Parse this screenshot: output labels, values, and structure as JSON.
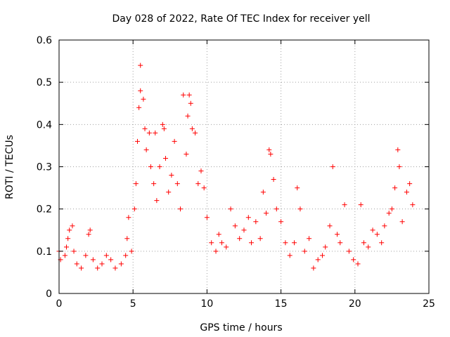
{
  "chart_data": {
    "type": "scatter",
    "title": "Day 028 of 2022, Rate Of TEC Index for receiver yell",
    "xlabel": "GPS time / hours",
    "ylabel": "ROTI / TECUs",
    "xlim": [
      0,
      25
    ],
    "ylim": [
      0,
      0.6
    ],
    "xticks": [
      "0",
      "5",
      "10",
      "15",
      "20",
      "25"
    ],
    "yticks": [
      "0",
      "0.1",
      "0.2",
      "0.3",
      "0.4",
      "0.5",
      "0.6"
    ],
    "grid": true,
    "marker": "+",
    "color": "#ff0000",
    "series": [
      {
        "points": [
          [
            0.0,
            0.1
          ],
          [
            0.1,
            0.08
          ],
          [
            0.4,
            0.09
          ],
          [
            0.5,
            0.11
          ],
          [
            0.6,
            0.13
          ],
          [
            0.7,
            0.15
          ],
          [
            0.9,
            0.16
          ],
          [
            1.0,
            0.1
          ],
          [
            1.2,
            0.07
          ],
          [
            1.5,
            0.06
          ],
          [
            1.8,
            0.09
          ],
          [
            2.0,
            0.14
          ],
          [
            2.1,
            0.15
          ],
          [
            2.3,
            0.08
          ],
          [
            2.6,
            0.06
          ],
          [
            2.9,
            0.07
          ],
          [
            3.2,
            0.09
          ],
          [
            3.5,
            0.08
          ],
          [
            3.8,
            0.06
          ],
          [
            4.2,
            0.07
          ],
          [
            4.5,
            0.09
          ],
          [
            4.6,
            0.13
          ],
          [
            4.7,
            0.18
          ],
          [
            4.9,
            0.1
          ],
          [
            5.1,
            0.2
          ],
          [
            5.2,
            0.26
          ],
          [
            5.3,
            0.36
          ],
          [
            5.4,
            0.44
          ],
          [
            5.5,
            0.54
          ],
          [
            5.5,
            0.48
          ],
          [
            5.7,
            0.46
          ],
          [
            5.8,
            0.39
          ],
          [
            5.9,
            0.34
          ],
          [
            6.1,
            0.38
          ],
          [
            6.2,
            0.3
          ],
          [
            6.4,
            0.26
          ],
          [
            6.5,
            0.38
          ],
          [
            6.6,
            0.22
          ],
          [
            6.8,
            0.3
          ],
          [
            7.0,
            0.4
          ],
          [
            7.1,
            0.39
          ],
          [
            7.2,
            0.32
          ],
          [
            7.4,
            0.24
          ],
          [
            7.6,
            0.28
          ],
          [
            7.8,
            0.36
          ],
          [
            8.0,
            0.26
          ],
          [
            8.2,
            0.2
          ],
          [
            8.4,
            0.47
          ],
          [
            8.6,
            0.33
          ],
          [
            8.7,
            0.42
          ],
          [
            8.8,
            0.47
          ],
          [
            8.9,
            0.45
          ],
          [
            9.0,
            0.39
          ],
          [
            9.2,
            0.38
          ],
          [
            9.4,
            0.26
          ],
          [
            9.6,
            0.29
          ],
          [
            9.8,
            0.25
          ],
          [
            10.0,
            0.18
          ],
          [
            10.3,
            0.12
          ],
          [
            10.6,
            0.1
          ],
          [
            10.8,
            0.14
          ],
          [
            11.0,
            0.12
          ],
          [
            11.3,
            0.11
          ],
          [
            11.6,
            0.2
          ],
          [
            11.9,
            0.16
          ],
          [
            12.2,
            0.13
          ],
          [
            12.5,
            0.15
          ],
          [
            12.8,
            0.18
          ],
          [
            13.0,
            0.12
          ],
          [
            13.3,
            0.17
          ],
          [
            13.6,
            0.13
          ],
          [
            13.8,
            0.24
          ],
          [
            14.0,
            0.19
          ],
          [
            14.2,
            0.34
          ],
          [
            14.3,
            0.33
          ],
          [
            14.5,
            0.27
          ],
          [
            14.7,
            0.2
          ],
          [
            15.0,
            0.17
          ],
          [
            15.3,
            0.12
          ],
          [
            15.6,
            0.09
          ],
          [
            15.9,
            0.12
          ],
          [
            16.1,
            0.25
          ],
          [
            16.3,
            0.2
          ],
          [
            16.6,
            0.1
          ],
          [
            16.9,
            0.13
          ],
          [
            17.2,
            0.06
          ],
          [
            17.5,
            0.08
          ],
          [
            17.8,
            0.09
          ],
          [
            18.0,
            0.11
          ],
          [
            18.3,
            0.16
          ],
          [
            18.5,
            0.3
          ],
          [
            18.8,
            0.14
          ],
          [
            19.0,
            0.12
          ],
          [
            19.3,
            0.21
          ],
          [
            19.6,
            0.1
          ],
          [
            19.9,
            0.08
          ],
          [
            20.2,
            0.07
          ],
          [
            20.4,
            0.21
          ],
          [
            20.6,
            0.12
          ],
          [
            20.9,
            0.11
          ],
          [
            21.2,
            0.15
          ],
          [
            21.5,
            0.14
          ],
          [
            21.8,
            0.12
          ],
          [
            22.0,
            0.16
          ],
          [
            22.3,
            0.19
          ],
          [
            22.5,
            0.2
          ],
          [
            22.7,
            0.25
          ],
          [
            22.9,
            0.34
          ],
          [
            23.0,
            0.3
          ],
          [
            23.2,
            0.17
          ],
          [
            23.5,
            0.24
          ],
          [
            23.7,
            0.26
          ],
          [
            23.9,
            0.21
          ]
        ]
      }
    ]
  }
}
